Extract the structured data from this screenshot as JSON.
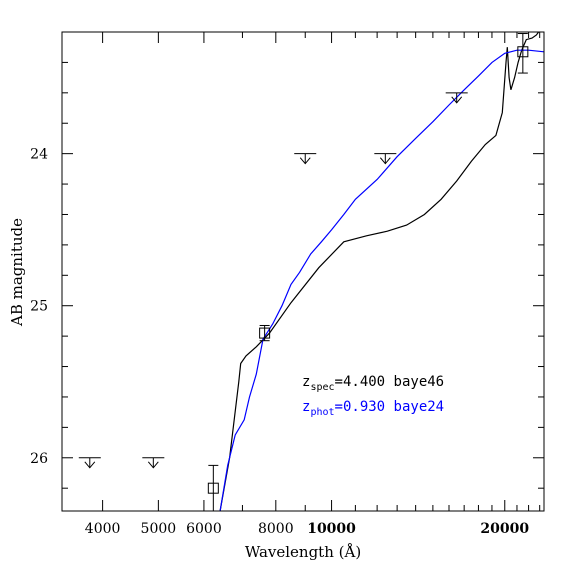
{
  "chart_data": {
    "type": "line",
    "xlabel": "Wavelength (Å)",
    "ylabel": "AB magnitude",
    "x_scale": "log",
    "xlim": [
      3400,
      23400
    ],
    "ylim": [
      26.35,
      23.2
    ],
    "y_inverted": true,
    "x_ticks": [
      {
        "value": 4000,
        "label": "4000",
        "bold": false
      },
      {
        "value": 5000,
        "label": "5000",
        "bold": false
      },
      {
        "value": 6000,
        "label": "6000",
        "bold": false
      },
      {
        "value": 8000,
        "label": "8000",
        "bold": false
      },
      {
        "value": 10000,
        "label": "10000",
        "bold": true
      },
      {
        "value": 20000,
        "label": "20000",
        "bold": true
      }
    ],
    "y_ticks": [
      {
        "value": 24,
        "label": "24"
      },
      {
        "value": 25,
        "label": "25"
      },
      {
        "value": 26,
        "label": "26"
      }
    ],
    "annotations": {
      "spec": {
        "prefix": "z",
        "sub": "spec",
        "text": "=4.400 baye46",
        "color": "#000000"
      },
      "phot": {
        "prefix": "z",
        "sub": "phot",
        "text": "=0.930 baye24",
        "color": "#0000ff"
      }
    },
    "upper_limits": [
      {
        "x": 3800,
        "y": 26.0
      },
      {
        "x": 4900,
        "y": 26.0
      },
      {
        "x": 9000,
        "y": 24.0
      },
      {
        "x": 12400,
        "y": 24.0
      },
      {
        "x": 16500,
        "y": 23.6
      }
    ],
    "detections": [
      {
        "x": 6230,
        "y": 26.2,
        "err_low": 0.2,
        "err_high": 0.15
      },
      {
        "x": 7650,
        "y": 25.18,
        "err_low": 0.05,
        "err_high": 0.05
      },
      {
        "x": 21500,
        "y": 23.33,
        "err_low": 0.14,
        "err_high": 0.12
      }
    ],
    "series": [
      {
        "color": "#000000",
        "points": [
          [
            6400,
            26.35
          ],
          [
            6650,
            26.0
          ],
          [
            6900,
            25.5
          ],
          [
            6950,
            25.38
          ],
          [
            7100,
            25.33
          ],
          [
            7400,
            25.27
          ],
          [
            7800,
            25.18
          ],
          [
            8500,
            24.98
          ],
          [
            9500,
            24.75
          ],
          [
            10500,
            24.58
          ],
          [
            11500,
            24.54
          ],
          [
            12500,
            24.51
          ],
          [
            13500,
            24.47
          ],
          [
            14500,
            24.4
          ],
          [
            15500,
            24.3
          ],
          [
            16500,
            24.18
          ],
          [
            17500,
            24.05
          ],
          [
            18500,
            23.94
          ],
          [
            19300,
            23.88
          ],
          [
            19800,
            23.73
          ],
          [
            20100,
            23.4
          ],
          [
            20200,
            23.3
          ],
          [
            20350,
            23.5
          ],
          [
            20500,
            23.58
          ],
          [
            20800,
            23.5
          ],
          [
            21100,
            23.4
          ],
          [
            21400,
            23.32
          ],
          [
            21800,
            23.25
          ],
          [
            22300,
            23.24
          ],
          [
            22700,
            23.22
          ],
          [
            23100,
            23.18
          ],
          [
            23400,
            23.15
          ]
        ]
      },
      {
        "color": "#0000ff",
        "points": [
          [
            6400,
            26.35
          ],
          [
            6600,
            26.05
          ],
          [
            6800,
            25.85
          ],
          [
            7050,
            25.75
          ],
          [
            7200,
            25.6
          ],
          [
            7400,
            25.45
          ],
          [
            7600,
            25.22
          ],
          [
            7900,
            25.12
          ],
          [
            8200,
            25.0
          ],
          [
            8500,
            24.86
          ],
          [
            8800,
            24.78
          ],
          [
            9200,
            24.66
          ],
          [
            9600,
            24.58
          ],
          [
            10000,
            24.5
          ],
          [
            10500,
            24.4
          ],
          [
            11000,
            24.3
          ],
          [
            12000,
            24.17
          ],
          [
            13000,
            24.02
          ],
          [
            14000,
            23.9
          ],
          [
            15000,
            23.79
          ],
          [
            16000,
            23.68
          ],
          [
            17000,
            23.58
          ],
          [
            18000,
            23.49
          ],
          [
            19000,
            23.4
          ],
          [
            20000,
            23.34
          ],
          [
            21000,
            23.32
          ],
          [
            22000,
            23.32
          ],
          [
            23400,
            23.33
          ]
        ]
      }
    ]
  }
}
